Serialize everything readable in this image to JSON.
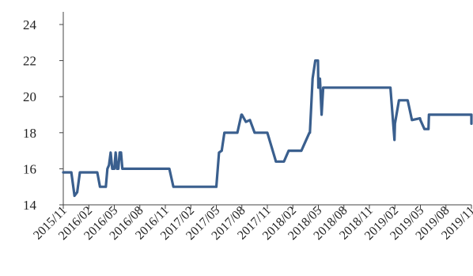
{
  "chart_data": {
    "type": "line",
    "title": "",
    "xlabel": "",
    "ylabel": "",
    "ylim": [
      14,
      24
    ],
    "yticks": [
      "14",
      "16",
      "18",
      "20",
      "22",
      "24"
    ],
    "xtick_labels": [
      "2015/11",
      "2016/02",
      "2016/05",
      "2016/08",
      "2016/11",
      "2017/02",
      "2017/05",
      "2017/08",
      "2017/11",
      "2018/02",
      "2018/05",
      "2018/08",
      "2018/11",
      "2019/02",
      "2019/05",
      "2019/08",
      "2019/11"
    ],
    "grid": false,
    "legend": "none",
    "line_color": "#3A5F8E",
    "series": [
      {
        "x": [
          "2015/11",
          "2015/11",
          "2015/12",
          "2015/12",
          "2015/12",
          "2015/12",
          "2016/01",
          "2016/01",
          "2016/02",
          "2016/02",
          "2016/03",
          "2016/03",
          "2016/03",
          "2016/03",
          "2016/04",
          "2016/04",
          "2016/04",
          "2016/04",
          "2016/04",
          "2016/04",
          "2016/05",
          "2016/05",
          "2016/05",
          "2016/05",
          "2016/05",
          "2016/05",
          "2016/05",
          "2016/06",
          "2016/06",
          "2016/06",
          "2016/08",
          "2016/11",
          "2016/11",
          "2016/11",
          "2016/12",
          "2017/02",
          "2017/05",
          "2017/05",
          "2017/05",
          "2017/05",
          "2017/06",
          "2017/07",
          "2017/07",
          "2017/07",
          "2017/08",
          "2017/08",
          "2017/08",
          "2017/09",
          "2017/10",
          "2017/10",
          "2017/11",
          "2017/11",
          "2017/12",
          "2017/12",
          "2018/01",
          "2018/02",
          "2018/03",
          "2018/03",
          "2018/04",
          "2018/04",
          "2018/04",
          "2018/04",
          "2018/05",
          "2018/05",
          "2018/05",
          "2018/05",
          "2018/05",
          "2018/05",
          "2018/06",
          "2018/08",
          "2018/11",
          "2019/01",
          "2019/01",
          "2019/01",
          "2019/02",
          "2019/02",
          "2019/02",
          "2019/03",
          "2019/04",
          "2019/04",
          "2019/05",
          "2019/05",
          "2019/05",
          "2019/06",
          "2019/06",
          "2019/06",
          "2019/07",
          "2019/08",
          "2019/11",
          "2019/11"
        ],
        "y": [
          15.8,
          15.8,
          15.6,
          14.5,
          14.7,
          15.8,
          15.8,
          15.8,
          15.8,
          15.8,
          15.8,
          15.0,
          15.0,
          15.0,
          15.0,
          16.0,
          16.2,
          16.9,
          16.0,
          16.0,
          16.0,
          16.9,
          16.0,
          16.0,
          16.9,
          16.9,
          16.0,
          16.0,
          16.0,
          16.0,
          16.0,
          16.0,
          16.0,
          15.0,
          15.0,
          15.0,
          15.0,
          16.9,
          17.0,
          18.0,
          18.0,
          18.0,
          18.0,
          19.0,
          19.0,
          18.6,
          18.7,
          18.0,
          18.0,
          18.0,
          18.0,
          16.5,
          16.4,
          16.4,
          17.0,
          17.0,
          17.0,
          18.0,
          18.0,
          21.0,
          22.0,
          22.0,
          20.5,
          21.0,
          19.0,
          20.5,
          20.5,
          20.5,
          20.5,
          20.5,
          20.5,
          20.5,
          20.5,
          17.6,
          18.5,
          19.8,
          19.8,
          19.8,
          18.7,
          18.8,
          18.7,
          18.2,
          18.2,
          19.0,
          19.0,
          19.0,
          19.0,
          19.0,
          19.0,
          18.5
        ]
      }
    ]
  }
}
